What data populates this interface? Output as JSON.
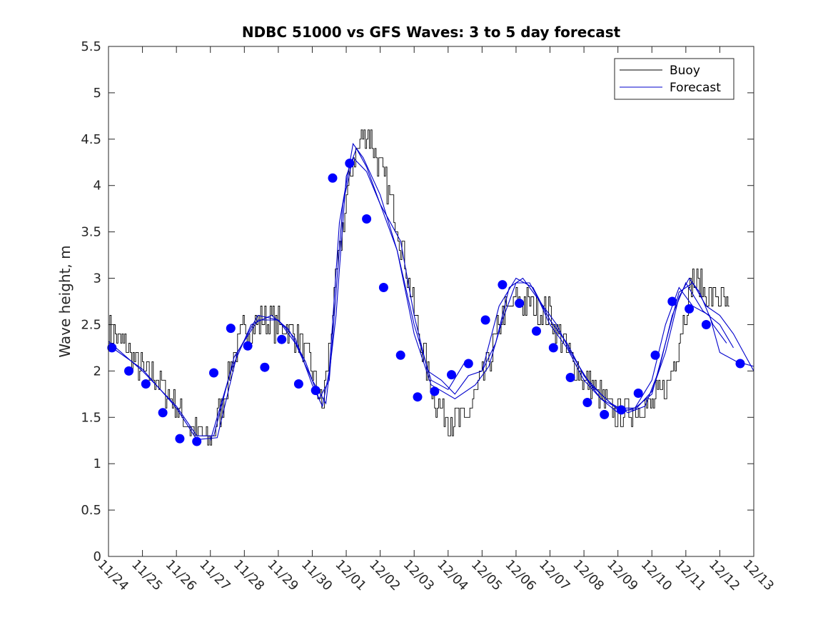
{
  "chart_data": {
    "type": "line",
    "title": "NDBC 51000 vs GFS Waves: 3 to 5 day forecast",
    "xlabel": "",
    "ylabel": "Wave height, m",
    "xlim": [
      0,
      19
    ],
    "ylim": [
      0,
      5.5
    ],
    "yticks": [
      "0",
      "0.5",
      "1",
      "1.5",
      "2",
      "2.5",
      "3",
      "3.5",
      "4",
      "4.5",
      "5",
      "5.5"
    ],
    "xticks": [
      "11/24",
      "11/25",
      "11/26",
      "11/27",
      "11/28",
      "11/29",
      "11/30",
      "12/01",
      "12/02",
      "12/03",
      "12/04",
      "12/05",
      "12/06",
      "12/07",
      "12/08",
      "12/09",
      "12/10",
      "12/11",
      "12/12",
      "12/13"
    ],
    "grid": false,
    "legend_position": "top-right",
    "legend": [
      "Buoy",
      "Forecast"
    ],
    "colors": {
      "buoy": "#000000",
      "forecast": "#0000cc",
      "marker": "#0000ff"
    },
    "buoy_anchors": [
      [
        0.0,
        2.45
      ],
      [
        0.5,
        2.25
      ],
      [
        1.0,
        2.0
      ],
      [
        1.5,
        1.9
      ],
      [
        2.0,
        1.6
      ],
      [
        2.5,
        1.35
      ],
      [
        3.0,
        1.25
      ],
      [
        3.3,
        1.6
      ],
      [
        3.7,
        2.2
      ],
      [
        4.0,
        2.45
      ],
      [
        4.5,
        2.55
      ],
      [
        5.0,
        2.5
      ],
      [
        5.5,
        2.4
      ],
      [
        6.0,
        2.0
      ],
      [
        6.3,
        1.6
      ],
      [
        6.5,
        2.3
      ],
      [
        6.9,
        3.6
      ],
      [
        7.2,
        4.3
      ],
      [
        7.6,
        4.6
      ],
      [
        8.0,
        4.2
      ],
      [
        8.5,
        3.6
      ],
      [
        8.8,
        3.0
      ],
      [
        9.2,
        2.3
      ],
      [
        9.6,
        1.7
      ],
      [
        10.0,
        1.5
      ],
      [
        10.5,
        1.45
      ],
      [
        10.9,
        1.8
      ],
      [
        11.2,
        2.1
      ],
      [
        11.6,
        2.6
      ],
      [
        12.0,
        2.75
      ],
      [
        12.5,
        2.7
      ],
      [
        13.0,
        2.6
      ],
      [
        13.5,
        2.2
      ],
      [
        14.0,
        1.9
      ],
      [
        14.5,
        1.7
      ],
      [
        15.0,
        1.5
      ],
      [
        15.5,
        1.6
      ],
      [
        16.0,
        1.65
      ],
      [
        16.5,
        1.9
      ],
      [
        16.9,
        2.5
      ],
      [
        17.2,
        3.0
      ],
      [
        17.6,
        2.85
      ],
      [
        18.0,
        2.8
      ],
      [
        18.3,
        2.6
      ]
    ],
    "buoy_noise": 0.17,
    "buoy_x_range": [
      0.0,
      18.3
    ],
    "buoy_step": 0.04,
    "forecast_series": [
      {
        "name": "run1",
        "points": [
          [
            0,
            2.32
          ],
          [
            1,
            2.0
          ],
          [
            2,
            1.62
          ],
          [
            2.6,
            1.3
          ],
          [
            3.1,
            1.3
          ],
          [
            3.7,
            2.15
          ],
          [
            4.4,
            2.55
          ],
          [
            5.0,
            2.55
          ],
          [
            5.5,
            2.35
          ],
          [
            6.0,
            1.85
          ],
          [
            6.3,
            1.62
          ],
          [
            6.5,
            2.0
          ],
          [
            6.8,
            3.6
          ],
          [
            7.2,
            4.45
          ],
          [
            7.5,
            4.3
          ],
          [
            8.0,
            3.9
          ],
          [
            8.5,
            3.3
          ],
          [
            9.0,
            2.5
          ],
          [
            9.5,
            1.9
          ],
          [
            10.0,
            1.8
          ],
          [
            10.5,
            2.1
          ]
        ]
      },
      {
        "name": "run2",
        "points": [
          [
            0,
            2.28
          ],
          [
            1,
            2.02
          ],
          [
            2,
            1.6
          ],
          [
            2.6,
            1.26
          ],
          [
            3.2,
            1.28
          ],
          [
            3.8,
            2.2
          ],
          [
            4.4,
            2.6
          ],
          [
            5.0,
            2.55
          ],
          [
            5.5,
            2.3
          ],
          [
            6.0,
            1.9
          ],
          [
            6.4,
            1.65
          ],
          [
            6.7,
            2.6
          ],
          [
            7.0,
            4.1
          ],
          [
            7.3,
            4.4
          ],
          [
            7.6,
            4.2
          ],
          [
            8.0,
            3.8
          ],
          [
            8.5,
            3.3
          ],
          [
            9.0,
            2.4
          ],
          [
            9.5,
            1.85
          ],
          [
            10.2,
            1.7
          ],
          [
            10.8,
            1.85
          ],
          [
            11.2,
            2.05
          ],
          [
            11.6,
            2.55
          ],
          [
            12.0,
            2.95
          ],
          [
            12.4,
            2.95
          ],
          [
            13.0,
            2.55
          ],
          [
            13.5,
            2.3
          ],
          [
            14.0,
            1.95
          ],
          [
            14.5,
            1.75
          ],
          [
            15.0,
            1.58
          ],
          [
            15.5,
            1.58
          ],
          [
            16.0,
            1.78
          ],
          [
            16.4,
            2.2
          ],
          [
            16.8,
            2.8
          ],
          [
            17.1,
            3.0
          ],
          [
            17.4,
            2.85
          ],
          [
            17.8,
            2.5
          ],
          [
            18.2,
            2.3
          ]
        ]
      },
      {
        "name": "run3",
        "points": [
          [
            11.0,
            2.0
          ],
          [
            11.5,
            2.7
          ],
          [
            12.0,
            3.0
          ],
          [
            12.5,
            2.9
          ],
          [
            13.0,
            2.5
          ],
          [
            13.5,
            2.25
          ],
          [
            14.0,
            1.9
          ],
          [
            14.5,
            1.7
          ],
          [
            15.0,
            1.55
          ],
          [
            15.5,
            1.6
          ],
          [
            16.0,
            1.9
          ],
          [
            16.4,
            2.5
          ],
          [
            16.8,
            2.9
          ],
          [
            17.2,
            2.7
          ],
          [
            17.7,
            2.6
          ],
          [
            18.0,
            2.2
          ],
          [
            18.5,
            2.1
          ],
          [
            19.0,
            2.05
          ]
        ]
      },
      {
        "name": "run4",
        "points": [
          [
            3.0,
            1.25
          ],
          [
            3.6,
            2.0
          ],
          [
            4.2,
            2.5
          ],
          [
            4.8,
            2.6
          ],
          [
            5.3,
            2.45
          ],
          [
            5.8,
            2.1
          ],
          [
            6.2,
            1.7
          ],
          [
            6.5,
            1.9
          ],
          [
            6.9,
            3.8
          ],
          [
            7.2,
            4.3
          ],
          [
            7.6,
            4.15
          ],
          [
            8.0,
            3.8
          ],
          [
            8.6,
            3.4
          ],
          [
            9.0,
            2.6
          ],
          [
            9.4,
            2.0
          ],
          [
            9.8,
            1.9
          ],
          [
            10.2,
            1.75
          ],
          [
            10.6,
            1.95
          ],
          [
            11.0,
            2.0
          ],
          [
            11.4,
            2.3
          ],
          [
            11.8,
            2.9
          ],
          [
            12.2,
            3.0
          ],
          [
            12.7,
            2.75
          ],
          [
            13.2,
            2.5
          ],
          [
            13.6,
            2.2
          ],
          [
            14.2,
            1.85
          ],
          [
            14.8,
            1.65
          ],
          [
            15.3,
            1.55
          ],
          [
            15.8,
            1.62
          ],
          [
            16.2,
            2.0
          ],
          [
            16.6,
            2.6
          ],
          [
            17.0,
            2.95
          ],
          [
            17.5,
            2.65
          ],
          [
            18.0,
            2.5
          ],
          [
            18.4,
            2.25
          ]
        ]
      },
      {
        "name": "run5",
        "points": [
          [
            12.5,
            2.9
          ],
          [
            13.0,
            2.55
          ],
          [
            13.5,
            2.3
          ],
          [
            14.0,
            1.95
          ],
          [
            14.5,
            1.7
          ],
          [
            15.0,
            1.6
          ],
          [
            15.5,
            1.6
          ],
          [
            16.0,
            1.75
          ],
          [
            16.4,
            2.3
          ],
          [
            16.8,
            2.85
          ],
          [
            17.2,
            2.95
          ],
          [
            17.6,
            2.7
          ],
          [
            18.0,
            2.6
          ],
          [
            18.4,
            2.4
          ],
          [
            19.0,
            2.0
          ]
        ]
      }
    ],
    "forecast_markers": [
      [
        0.1,
        2.25
      ],
      [
        0.6,
        2.0
      ],
      [
        1.1,
        1.86
      ],
      [
        1.6,
        1.55
      ],
      [
        2.1,
        1.27
      ],
      [
        2.6,
        1.24
      ],
      [
        3.1,
        1.98
      ],
      [
        3.6,
        2.46
      ],
      [
        4.1,
        2.27
      ],
      [
        4.6,
        2.04
      ],
      [
        5.1,
        2.34
      ],
      [
        5.6,
        1.86
      ],
      [
        6.1,
        1.79
      ],
      [
        6.6,
        4.08
      ],
      [
        7.1,
        4.24
      ],
      [
        7.6,
        3.64
      ],
      [
        8.1,
        2.9
      ],
      [
        8.6,
        2.17
      ],
      [
        9.1,
        1.72
      ],
      [
        9.6,
        1.78
      ],
      [
        10.1,
        1.96
      ],
      [
        10.6,
        2.08
      ],
      [
        11.1,
        2.55
      ],
      [
        11.6,
        2.93
      ],
      [
        12.1,
        2.73
      ],
      [
        12.6,
        2.43
      ],
      [
        13.1,
        2.25
      ],
      [
        13.6,
        1.93
      ],
      [
        14.1,
        1.66
      ],
      [
        14.6,
        1.53
      ],
      [
        15.1,
        1.58
      ],
      [
        15.6,
        1.76
      ],
      [
        16.1,
        2.17
      ],
      [
        16.6,
        2.75
      ],
      [
        17.1,
        2.67
      ],
      [
        17.6,
        2.5
      ],
      [
        18.6,
        2.08
      ]
    ]
  }
}
